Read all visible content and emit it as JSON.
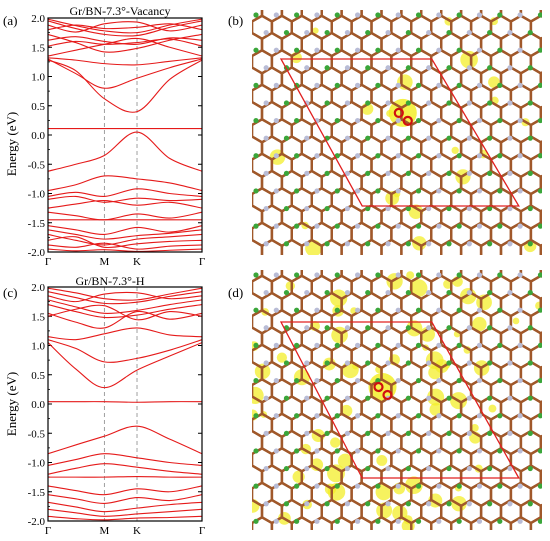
{
  "panels": [
    {
      "id": "a",
      "label": "(a)",
      "title": "Gr/BN-7.3°-Vacancy",
      "ylabel": "Energy (eV)",
      "yticks": [
        "2.0",
        "1.5",
        "1.0",
        "0.5",
        "0.0",
        "-0.5",
        "-1.0",
        "-1.5",
        "-2.0"
      ],
      "xticks": [
        "Γ",
        "M",
        "K",
        "Γ"
      ],
      "xtick_positions": [
        0,
        0.366,
        0.578,
        1
      ],
      "ylim": [
        -2.0,
        2.0
      ],
      "line_color": "#e51a1a",
      "bands": [
        [
          1.98,
          1.87,
          1.78,
          1.75,
          1.88,
          1.98
        ],
        [
          1.95,
          1.82,
          1.72,
          1.7,
          1.84,
          1.95
        ],
        [
          1.88,
          1.76,
          1.9,
          1.93,
          1.78,
          1.88
        ],
        [
          1.8,
          1.88,
          1.82,
          1.84,
          1.9,
          1.8
        ],
        [
          1.72,
          1.58,
          1.42,
          1.48,
          1.62,
          1.72
        ],
        [
          1.62,
          1.68,
          1.6,
          1.55,
          1.66,
          1.62
        ],
        [
          1.52,
          1.6,
          1.55,
          1.58,
          1.64,
          1.52
        ],
        [
          1.35,
          1.45,
          1.55,
          1.65,
          1.5,
          1.35
        ],
        [
          1.32,
          1.28,
          1.22,
          1.2,
          1.26,
          1.32
        ],
        [
          1.3,
          1.05,
          0.8,
          0.97,
          1.15,
          1.3
        ],
        [
          1.28,
          1.1,
          0.62,
          0.4,
          0.95,
          1.28
        ],
        [
          0.11,
          0.11,
          0.11,
          0.11,
          0.11,
          0.11
        ],
        [
          -0.62,
          -0.5,
          -0.35,
          0.05,
          -0.4,
          -0.62
        ],
        [
          -0.95,
          -0.85,
          -0.7,
          -0.75,
          -0.82,
          -0.95
        ],
        [
          -1.05,
          -0.98,
          -1.05,
          -0.92,
          -1.0,
          -1.05
        ],
        [
          -1.1,
          -1.05,
          -1.15,
          -1.08,
          -1.12,
          -1.1
        ],
        [
          -1.25,
          -1.18,
          -1.12,
          -1.2,
          -1.15,
          -1.25
        ],
        [
          -1.32,
          -1.38,
          -1.45,
          -1.35,
          -1.42,
          -1.32
        ],
        [
          -1.45,
          -1.45,
          -1.45,
          -1.45,
          -1.45,
          -1.45
        ],
        [
          -1.55,
          -1.62,
          -1.7,
          -1.58,
          -1.66,
          -1.55
        ],
        [
          -1.62,
          -1.7,
          -1.78,
          -1.72,
          -1.68,
          -1.62
        ],
        [
          -1.7,
          -1.8,
          -1.88,
          -1.78,
          -1.74,
          -1.7
        ],
        [
          -1.8,
          -1.74,
          -1.92,
          -1.86,
          -1.82,
          -1.8
        ],
        [
          -1.88,
          -1.92,
          -1.85,
          -1.95,
          -1.9,
          -1.88
        ],
        [
          -1.95,
          -1.98,
          -1.96,
          -1.99,
          -1.97,
          -1.95
        ]
      ]
    },
    {
      "id": "c",
      "label": "(c)",
      "title": "Gr/BN-7.3°-H",
      "ylabel": "Energy (eV)",
      "yticks": [
        "2.0",
        "1.5",
        "1.0",
        "0.5",
        "0.0",
        "-0.5",
        "-1.0",
        "-1.5",
        "-2.0"
      ],
      "xticks": [
        "Γ",
        "M",
        "K",
        "Γ"
      ],
      "xtick_positions": [
        0,
        0.366,
        0.578,
        1
      ],
      "ylim": [
        -2.0,
        2.0
      ],
      "line_color": "#e51a1a",
      "bands": [
        [
          1.98,
          1.9,
          1.8,
          1.78,
          1.88,
          1.98
        ],
        [
          1.92,
          1.82,
          1.72,
          1.74,
          1.84,
          1.92
        ],
        [
          1.85,
          1.75,
          1.88,
          1.9,
          1.8,
          1.85
        ],
        [
          1.78,
          1.66,
          1.55,
          1.6,
          1.7,
          1.78
        ],
        [
          1.7,
          1.58,
          1.48,
          1.52,
          1.62,
          1.7
        ],
        [
          1.55,
          1.4,
          1.3,
          1.58,
          1.45,
          1.55
        ],
        [
          1.5,
          1.62,
          1.68,
          1.44,
          1.58,
          1.5
        ],
        [
          1.15,
          1.1,
          1.2,
          1.3,
          1.18,
          1.15
        ],
        [
          1.1,
          0.95,
          0.72,
          0.78,
          0.92,
          1.1
        ],
        [
          1.05,
          0.6,
          0.28,
          0.58,
          0.82,
          1.05
        ],
        [
          0.04,
          0.04,
          0.04,
          0.03,
          0.04,
          0.04
        ],
        [
          -0.85,
          -0.7,
          -0.55,
          -0.38,
          -0.6,
          -0.85
        ],
        [
          -1.05,
          -0.95,
          -0.85,
          -0.92,
          -1.0,
          -1.05
        ],
        [
          -1.2,
          -1.1,
          -1.02,
          -1.08,
          -1.15,
          -1.2
        ],
        [
          -1.25,
          -1.25,
          -1.25,
          -1.24,
          -1.25,
          -1.25
        ],
        [
          -1.4,
          -1.48,
          -1.55,
          -1.45,
          -1.5,
          -1.4
        ],
        [
          -1.55,
          -1.62,
          -1.7,
          -1.6,
          -1.65,
          -1.55
        ],
        [
          -1.68,
          -1.76,
          -1.84,
          -1.78,
          -1.72,
          -1.68
        ],
        [
          -1.8,
          -1.86,
          -1.92,
          -1.88,
          -1.84,
          -1.8
        ],
        [
          -1.92,
          -1.96,
          -1.98,
          -1.95,
          -1.94,
          -1.92
        ]
      ]
    },
    {
      "id": "b",
      "label": "(b)",
      "image_type": "charge-density-structure",
      "density_spots": "low"
    },
    {
      "id": "d",
      "label": "(d)",
      "image_type": "charge-density-structure",
      "density_spots": "high"
    }
  ],
  "colors": {
    "band_line": "#e51a1a",
    "carbon": "#a0582a",
    "boron": "#3aa63a",
    "nitrogen": "#b8bcd6",
    "isosurface": "#f3ee2a",
    "cell": "#e02020"
  }
}
